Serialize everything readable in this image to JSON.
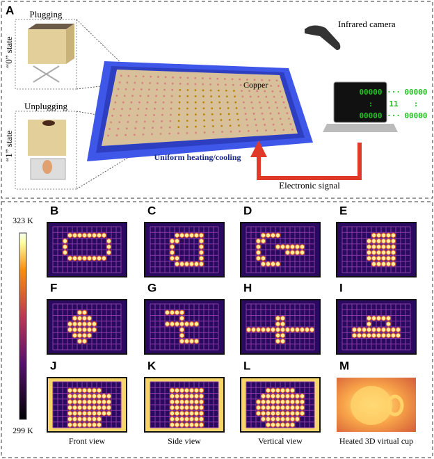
{
  "panel_a": {
    "label": "A",
    "plugging": "Plugging",
    "state0": "“0” state",
    "unplugging": "Unplugging",
    "state1": "“1” state",
    "copper": "Copper",
    "camera": "Infrared camera",
    "screen": [
      [
        "00000",
        "···",
        "00000"
      ],
      [
        ":",
        "11",
        ":"
      ],
      [
        "00000",
        "···",
        "00000"
      ]
    ],
    "base": "Uniform heating/cooling",
    "signal": "Electronic signal"
  },
  "colorbar": {
    "max": "323 K",
    "min": "299 K"
  },
  "panels": [
    {
      "label": "B"
    },
    {
      "label": "C"
    },
    {
      "label": "D"
    },
    {
      "label": "E"
    },
    {
      "label": "F"
    },
    {
      "label": "G"
    },
    {
      "label": "H"
    },
    {
      "label": "I"
    },
    {
      "label": "J",
      "caption": "Front view"
    },
    {
      "label": "K",
      "caption": "Side view"
    },
    {
      "label": "L",
      "caption": "Vertical view"
    },
    {
      "label": "M",
      "caption": "Heated 3D virtual cup"
    }
  ]
}
